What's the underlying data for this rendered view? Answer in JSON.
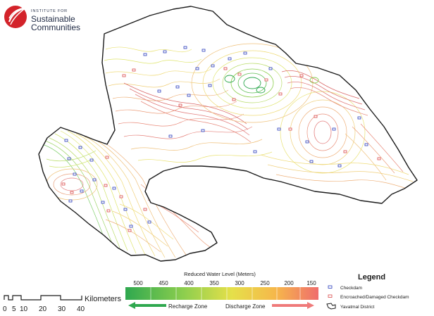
{
  "logo": {
    "institute_line": "INSTITUTE FOR",
    "name_line_1": "Sustainable",
    "name_line_2": "Communities",
    "brand_color": "#d3232a"
  },
  "scale_bar": {
    "unit_label": "Kilometers",
    "tick_labels": [
      "0",
      "5",
      "10",
      "20",
      "30",
      "40"
    ]
  },
  "color_scale": {
    "title": "Reduced Water Level (Meters)",
    "tick_labels": [
      "500",
      "450",
      "400",
      "350",
      "300",
      "250",
      "200",
      "150"
    ],
    "recharge_label": "Recharge Zone",
    "discharge_label": "Discharge Zone",
    "colors": [
      "#2fa84f",
      "#8cce4e",
      "#e5e04a",
      "#f6b74b",
      "#ef6d6d"
    ]
  },
  "legend": {
    "title": "Legend",
    "items": [
      {
        "label": "Checkdam",
        "symbol": "checkdam-icon",
        "color": "#2a3dbd"
      },
      {
        "label": "Encroached/Damaged Checkdam",
        "symbol": "damaged-checkdam-icon",
        "color": "#d94848"
      },
      {
        "label": "Yavatmal District",
        "symbol": "district-boundary-icon",
        "color": "#1b1b1b"
      }
    ]
  }
}
